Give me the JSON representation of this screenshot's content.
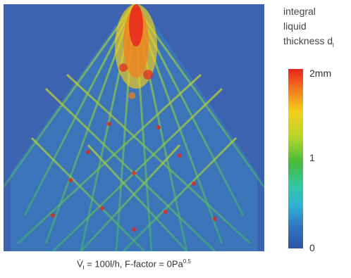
{
  "figure": {
    "caption": {
      "v_dot": "V̇",
      "v_sub": "l",
      "text": " = 100l/h, F-factor = 0Pa",
      "exp": "0.5"
    },
    "legend": {
      "title_lines": [
        "integral",
        "liquid",
        "thickness d"
      ],
      "title_sub": "l",
      "ticks": [
        "2mm",
        "1",
        "0"
      ]
    },
    "colors": {
      "background": "#3c62b0",
      "colormap": [
        "#2a55a8",
        "#3074c4",
        "#2fb1d5",
        "#32c8a0",
        "#45bb3b",
        "#b5d629",
        "#f4d01c",
        "#f47f1d",
        "#e8231d"
      ]
    }
  }
}
